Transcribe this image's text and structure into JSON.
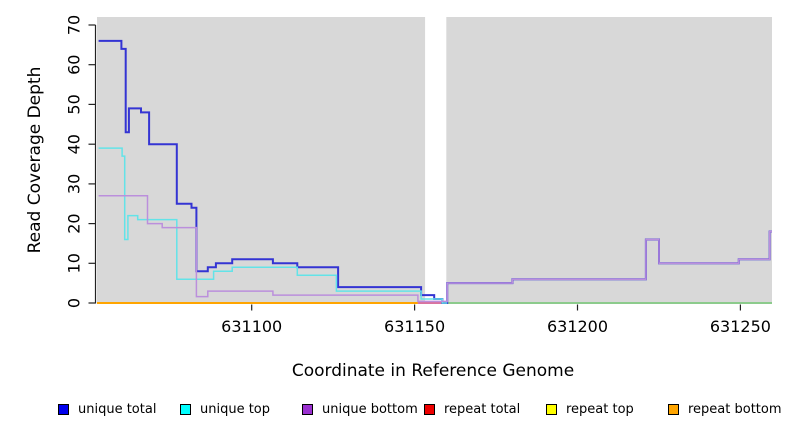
{
  "chart_data": {
    "type": "line",
    "subtype": "step",
    "title": "",
    "xlabel": "Coordinate in Reference Genome",
    "ylabel": "Read Coverage Depth",
    "xlim": [
      631052.5,
      631259.7
    ],
    "ylim": [
      0,
      70
    ],
    "x_ticks": [
      631100,
      631150,
      631200,
      631250
    ],
    "y_ticks": [
      0,
      10,
      20,
      30,
      40,
      50,
      60,
      70
    ],
    "grid": false,
    "legend_position": "bottom",
    "plot_bg": "#D8D8D8",
    "gap_region": {
      "from": 631153.2,
      "to": 631159.7,
      "color": "#FFFFFF"
    },
    "series": [
      {
        "name": "unique total",
        "color": "#3434D3",
        "width": 2,
        "steps": [
          [
            631053,
            66
          ],
          [
            631060,
            64
          ],
          [
            631061.3,
            43
          ],
          [
            631062.3,
            49
          ],
          [
            631066,
            48
          ],
          [
            631068.5,
            40
          ],
          [
            631077,
            25
          ],
          [
            631081.5,
            24
          ],
          [
            631083,
            8
          ],
          [
            631086.5,
            9
          ],
          [
            631089,
            10
          ],
          [
            631094,
            11
          ],
          [
            631106.5,
            10
          ],
          [
            631114,
            9
          ],
          [
            631126.5,
            4
          ],
          [
            631152,
            2
          ],
          [
            631156,
            1
          ],
          [
            631158.5,
            0
          ],
          [
            631160,
            5
          ],
          [
            631180,
            6
          ],
          [
            631221,
            16
          ],
          [
            631225,
            10
          ],
          [
            631249.5,
            11
          ],
          [
            631259,
            18
          ],
          [
            631259.7,
            18
          ]
        ]
      },
      {
        "name": "unique top",
        "color": "#63E3E8",
        "width": 1.5,
        "steps": [
          [
            631053,
            39
          ],
          [
            631060.2,
            37
          ],
          [
            631061,
            16
          ],
          [
            631062,
            22
          ],
          [
            631065,
            21
          ],
          [
            631077,
            6
          ],
          [
            631088.3,
            8
          ],
          [
            631094,
            9
          ],
          [
            631114,
            7
          ],
          [
            631126,
            3
          ],
          [
            631152,
            1
          ],
          [
            631158.5,
            0
          ],
          [
            631160,
            0
          ]
        ]
      },
      {
        "name": "unique bottom",
        "color": "#BB8FDC",
        "width": 1.5,
        "steps": [
          [
            631053,
            27
          ],
          [
            631068,
            20
          ],
          [
            631072.5,
            19
          ],
          [
            631083,
            1.6
          ],
          [
            631086.5,
            3
          ],
          [
            631106.5,
            2
          ],
          [
            631151,
            0.4
          ],
          [
            631160,
            5
          ],
          [
            631180,
            6
          ],
          [
            631221,
            16
          ],
          [
            631225,
            10
          ],
          [
            631249.5,
            11
          ],
          [
            631259,
            18
          ],
          [
            631259.7,
            18
          ]
        ]
      }
    ],
    "zero_segments": [
      {
        "name": "repeat-zero-left-orange",
        "color": "#FFA500",
        "from": 631052.5,
        "to": 631151
      },
      {
        "name": "overlap-zero-mid-pink",
        "color": "#D9739F",
        "from": 631151,
        "to": 631159.7
      },
      {
        "name": "overlap-zero-right-green",
        "color": "#8CCB8C",
        "from": 631159.7,
        "to": 631259.7
      }
    ]
  },
  "legend": {
    "items": [
      {
        "label": "unique total",
        "color": "#0000EE"
      },
      {
        "label": "unique top",
        "color": "#00FFFF"
      },
      {
        "label": "unique bottom",
        "color": "#9A30D0"
      },
      {
        "label": "repeat total",
        "color": "#EE0000"
      },
      {
        "label": "repeat top",
        "color": "#FFFF00"
      },
      {
        "label": "repeat bottom",
        "color": "#FFA500"
      }
    ]
  }
}
